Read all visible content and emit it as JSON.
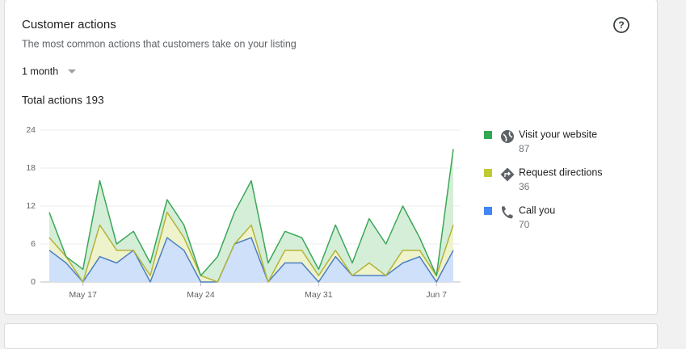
{
  "header": {
    "title": "Customer actions",
    "subtitle": "The most common actions that customers take on your listing",
    "period": "1 month"
  },
  "total_label": "Total actions",
  "total": 193,
  "chart_data": {
    "type": "stacked_area",
    "categories": [
      null,
      null,
      "May 17",
      null,
      null,
      null,
      null,
      null,
      null,
      "May 24",
      null,
      null,
      null,
      null,
      null,
      null,
      "May 31",
      null,
      null,
      null,
      null,
      null,
      null,
      "Jun 7",
      null
    ],
    "series": [
      {
        "name": "Call you",
        "total": 70,
        "color": "#4a7fc1",
        "fill": "#cfe0fb",
        "values": [
          5,
          3,
          0,
          4,
          3,
          5,
          0,
          7,
          5,
          0,
          0,
          6,
          7,
          0,
          3,
          3,
          0,
          4,
          1,
          1,
          1,
          3,
          4,
          0,
          5
        ]
      },
      {
        "name": "Request directions",
        "total": 36,
        "color": "#b4b338",
        "fill": "#eff3cc",
        "values": [
          2,
          1,
          0,
          5,
          2,
          0,
          1,
          4,
          2,
          1,
          0,
          0,
          2,
          0,
          2,
          2,
          1,
          1,
          0,
          2,
          0,
          2,
          1,
          1,
          4
        ]
      },
      {
        "name": "Visit your website",
        "total": 87,
        "color": "#3aa757",
        "fill": "#d4eed8",
        "values": [
          4,
          0,
          2,
          7,
          1,
          3,
          2,
          2,
          2,
          0,
          4,
          5,
          7,
          3,
          3,
          2,
          1,
          4,
          2,
          7,
          5,
          7,
          2,
          0,
          12
        ]
      }
    ],
    "legend_colors": [
      "#34a853",
      "#c0ca33",
      "#4285f4"
    ],
    "ylim": [
      0,
      24
    ],
    "yticks": [
      0,
      6,
      12,
      18,
      24
    ],
    "grid": true
  }
}
